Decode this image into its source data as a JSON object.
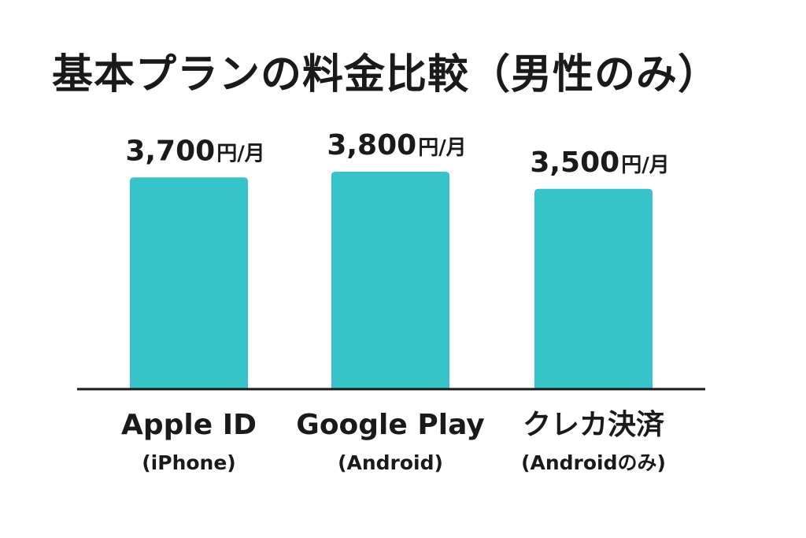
{
  "title": "基本プランの料金比較（男性のみ）",
  "chart_data": {
    "type": "bar",
    "title": "基本プランの料金比較（男性のみ）",
    "unit": "円/月",
    "categories": [
      {
        "name": "Apple ID",
        "sub": "(iPhone)"
      },
      {
        "name": "Google Play",
        "sub": "(Android)"
      },
      {
        "name": "クレカ決済",
        "sub": "(Androidのみ)"
      }
    ],
    "values": [
      3700,
      3800,
      3500
    ],
    "value_labels": [
      "3,700",
      "3,800",
      "3,500"
    ],
    "bar_color": "#36c3c9",
    "axis_color": "#1a1a1a",
    "grid": false,
    "ylim": [
      0,
      3800
    ]
  }
}
